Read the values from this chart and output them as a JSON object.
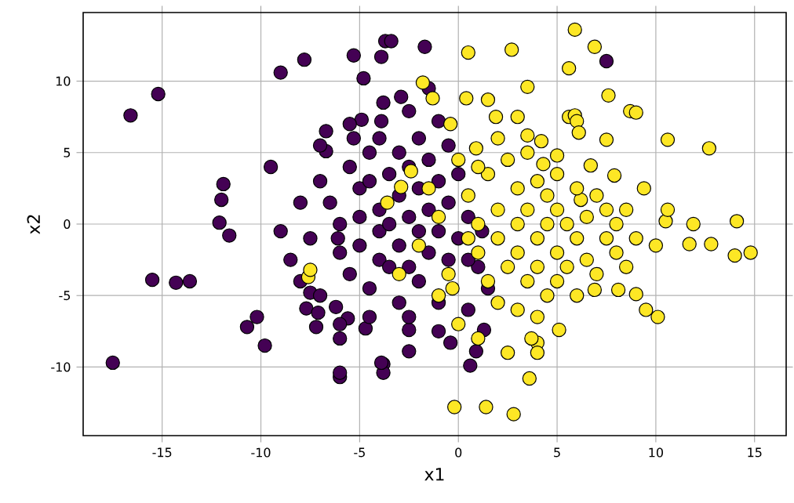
{
  "chart_data": {
    "type": "scatter",
    "xlabel": "x1",
    "ylabel": "x2",
    "xlim": [
      -19,
      16.6
    ],
    "ylim": [
      -14.8,
      14.8
    ],
    "xticks": [
      -15,
      -10,
      -5,
      0,
      5,
      10,
      15
    ],
    "yticks": [
      -10,
      -5,
      0,
      5,
      10
    ],
    "grid": true,
    "marker": "circle",
    "series": [
      {
        "color": "#440154",
        "x": [
          -16.6,
          -15.2,
          -17.5,
          -15.5,
          -14.3,
          -13.6,
          -11.9,
          -12.0,
          -11.6,
          -10.7,
          -9.8,
          -9.0,
          -7.8,
          -5.3,
          -3.7,
          -3.4,
          -3.9,
          -1.7,
          -4.8,
          -6.7,
          -4.9,
          -3.9,
          -5.3,
          -2.9,
          -2.5,
          -6.7,
          -9.5,
          -12.1,
          -6.1,
          -6.0,
          -6.0,
          -3.8,
          -3.8,
          -2.5,
          0.6,
          0.9,
          -0.4,
          1.3,
          -2.5,
          -4.7,
          -5.6,
          -6.2,
          -7.5,
          -10.2,
          7.5,
          -7.2,
          -6.0,
          -3.9,
          -7.7,
          -7.1,
          -7,
          -6.5,
          -6,
          -6,
          -5.5,
          -5.5,
          -5,
          -5,
          -5,
          -4.5,
          -4.5,
          -4.5,
          -4,
          -4,
          -4,
          -4,
          -3.5,
          -3.5,
          -3.5,
          -3,
          -3,
          -3,
          -3,
          -2.5,
          -2.5,
          -2.5,
          -2,
          -2,
          -2,
          -2,
          -1.5,
          -1.5,
          -1.5,
          -1,
          -1,
          -1,
          -0.5,
          -0.5,
          -0.5,
          0,
          0,
          0.5,
          1,
          1.5,
          0.5,
          -7.5,
          -8,
          -8.5,
          -7,
          -6,
          -4.5,
          -2.5,
          -1,
          -5.5,
          -7,
          -9,
          -8,
          -3.8,
          -1,
          1.2,
          0.5,
          -1.5
        ],
        "values": [
          7.6,
          9.1,
          -9.7,
          -3.9,
          -4.1,
          -4.0,
          2.8,
          1.7,
          -0.8,
          -7.2,
          -8.5,
          10.6,
          11.5,
          11.8,
          12.8,
          12.8,
          11.7,
          12.4,
          10.2,
          6.5,
          7.3,
          7.2,
          6.0,
          8.9,
          7.9,
          5.1,
          4.0,
          0.1,
          -1.0,
          -10.7,
          -10.4,
          -9.8,
          -10.4,
          -8.9,
          -9.9,
          -8.9,
          -8.3,
          -7.4,
          -7.4,
          -7.3,
          -6.6,
          -5.8,
          -4.8,
          -6.5,
          11.4,
          -7.2,
          -8.0,
          -9.7,
          -5.9,
          -6.2,
          3,
          1.5,
          0,
          -2,
          4,
          -3.5,
          2.5,
          0.5,
          -1.5,
          5,
          3,
          -4.5,
          1,
          -0.5,
          -2.5,
          6,
          3.5,
          -3,
          0,
          5,
          2,
          -1.5,
          -5.5,
          4,
          0.5,
          -3,
          6,
          2.5,
          -0.5,
          -4,
          4.5,
          1,
          -2,
          3,
          -0.5,
          -5.5,
          5.5,
          1.5,
          -2.5,
          3.5,
          -1,
          0.5,
          -3,
          -4.5,
          -6,
          -1,
          1.5,
          -2.5,
          -5,
          -7,
          -6.5,
          -6.5,
          -7.5,
          7,
          5.5,
          -0.5,
          -4,
          8.5,
          7.2,
          -0.5,
          -2.5,
          9.5
        ]
      },
      {
        "color": "#fde725",
        "x": [
          2.7,
          0.5,
          5.9,
          6.9,
          5.6,
          7.6,
          8.7,
          9.0,
          7.5,
          10.6,
          12.7,
          9.4,
          10.5,
          11.9,
          14.1,
          14.8,
          14.0,
          12.8,
          11.7,
          10.6,
          10.0,
          9.0,
          9.5,
          10.1,
          8.1,
          6.9,
          5.1,
          4.0,
          3.7,
          -0.2,
          1.4,
          2.8,
          3.6,
          -3.6,
          -2.9,
          -2.4,
          -7.6,
          -7.5,
          -1.8,
          -1.3,
          -0.4,
          0.4,
          1.5,
          1.9,
          0.9,
          3.5,
          4.2,
          5.0,
          4.3,
          5.6,
          5.9,
          6.0,
          6.1,
          3.5,
          6.7,
          6.2,
          7.9,
          0.5,
          1,
          1,
          1.5,
          1.5,
          2,
          2,
          2,
          2.5,
          2.5,
          3,
          3,
          3,
          3,
          3.5,
          3.5,
          3.5,
          4,
          4,
          4,
          4,
          4.5,
          4.5,
          4.5,
          5,
          5,
          5,
          5,
          5.5,
          5.5,
          6,
          6,
          6,
          6.5,
          6.5,
          7,
          7,
          7.5,
          7.5,
          8,
          8,
          8.5,
          8.5,
          9,
          0,
          -0.5,
          -1,
          0,
          1,
          2.5,
          4,
          3,
          2,
          1,
          0.5,
          -1,
          -2,
          -3,
          -1.5,
          -0.3
        ],
        "values": [
          12.2,
          12.0,
          13.6,
          12.4,
          10.9,
          9.0,
          7.9,
          7.8,
          5.9,
          5.9,
          5.3,
          2.5,
          0.2,
          0,
          0.2,
          -2.0,
          -2.2,
          -1.4,
          -1.4,
          1.0,
          -1.5,
          -4.9,
          -6.0,
          -6.5,
          -4.6,
          -4.6,
          -7.4,
          -8.3,
          -8.0,
          -12.8,
          -12.8,
          -13.3,
          -10.8,
          1.5,
          2.6,
          3.7,
          -3.7,
          -3.2,
          9.9,
          8.8,
          7.0,
          8.8,
          8.7,
          7.5,
          5.3,
          6.2,
          5.8,
          4.8,
          4.2,
          7.5,
          7.6,
          7.2,
          6.4,
          9.6,
          4.1,
          1.7,
          3.4,
          2,
          0,
          -2,
          3.5,
          -4,
          1,
          -1,
          -5.5,
          4.5,
          -3,
          2.5,
          0,
          -2,
          -6,
          5,
          1,
          -4,
          3,
          -1,
          -3,
          -6.5,
          2,
          0,
          -5,
          3.5,
          1,
          -2,
          -4,
          0,
          -3,
          2.5,
          -1,
          -5,
          0.5,
          -2.5,
          2,
          -3.5,
          -1,
          1,
          -2,
          0,
          -3,
          1,
          -1,
          4.5,
          -3.5,
          -5,
          -7,
          -8,
          -9,
          -9,
          7.5,
          6,
          4,
          -1,
          0.5,
          -1.5,
          -3.5,
          2.5,
          -4.5
        ]
      }
    ]
  }
}
